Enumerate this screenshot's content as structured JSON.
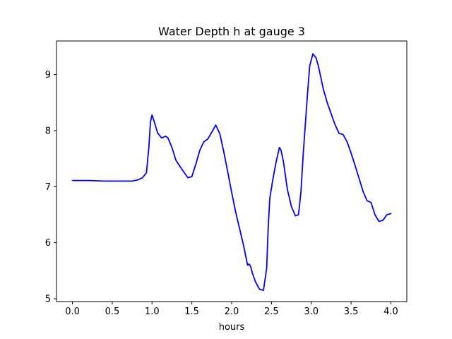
{
  "chart_data": {
    "type": "line",
    "title": "Water Depth h at gauge 3",
    "xlabel": "hours",
    "ylabel": "",
    "xlim": [
      -0.2,
      4.2
    ],
    "ylim": [
      4.95,
      9.6
    ],
    "grid": false,
    "legend": "none",
    "x_ticks": [
      0.0,
      0.5,
      1.0,
      1.5,
      2.0,
      2.5,
      3.0,
      3.5,
      4.0
    ],
    "x_tick_labels": [
      "0.0",
      "0.5",
      "1.0",
      "1.5",
      "2.0",
      "2.5",
      "3.0",
      "3.5",
      "4.0"
    ],
    "y_ticks": [
      5,
      6,
      7,
      8,
      9
    ],
    "y_tick_labels": [
      "5",
      "6",
      "7",
      "8",
      "9"
    ],
    "series": [
      {
        "color": "#0000ff",
        "x": [
          0.0,
          0.2,
          0.4,
          0.6,
          0.75,
          0.82,
          0.88,
          0.93,
          0.96,
          0.98,
          1.0,
          1.03,
          1.07,
          1.12,
          1.17,
          1.2,
          1.25,
          1.3,
          1.38,
          1.45,
          1.5,
          1.55,
          1.6,
          1.65,
          1.7,
          1.75,
          1.8,
          1.85,
          1.9,
          1.95,
          2.0,
          2.05,
          2.1,
          2.15,
          2.2,
          2.22,
          2.24,
          2.26,
          2.28,
          2.3,
          2.35,
          2.4,
          2.44,
          2.46,
          2.48,
          2.52,
          2.56,
          2.6,
          2.62,
          2.65,
          2.7,
          2.75,
          2.8,
          2.84,
          2.87,
          2.9,
          2.95,
          2.98,
          3.02,
          3.06,
          3.09,
          3.12,
          3.15,
          3.2,
          3.25,
          3.3,
          3.35,
          3.4,
          3.45,
          3.5,
          3.55,
          3.6,
          3.65,
          3.7,
          3.75,
          3.8,
          3.85,
          3.9,
          3.95,
          4.0
        ],
        "y": [
          7.11,
          7.11,
          7.1,
          7.1,
          7.1,
          7.12,
          7.16,
          7.25,
          7.7,
          8.15,
          8.28,
          8.15,
          7.96,
          7.87,
          7.9,
          7.87,
          7.7,
          7.47,
          7.3,
          7.16,
          7.18,
          7.4,
          7.65,
          7.8,
          7.85,
          7.97,
          8.1,
          7.95,
          7.63,
          7.27,
          6.9,
          6.55,
          6.25,
          5.95,
          5.6,
          5.62,
          5.57,
          5.46,
          5.38,
          5.3,
          5.17,
          5.15,
          5.55,
          6.3,
          6.8,
          7.15,
          7.45,
          7.7,
          7.65,
          7.45,
          6.95,
          6.65,
          6.48,
          6.5,
          6.9,
          7.6,
          8.6,
          9.15,
          9.37,
          9.3,
          9.15,
          8.95,
          8.75,
          8.5,
          8.3,
          8.1,
          7.95,
          7.93,
          7.8,
          7.6,
          7.38,
          7.15,
          6.92,
          6.75,
          6.72,
          6.5,
          6.38,
          6.4,
          6.5,
          6.52
        ]
      }
    ]
  }
}
